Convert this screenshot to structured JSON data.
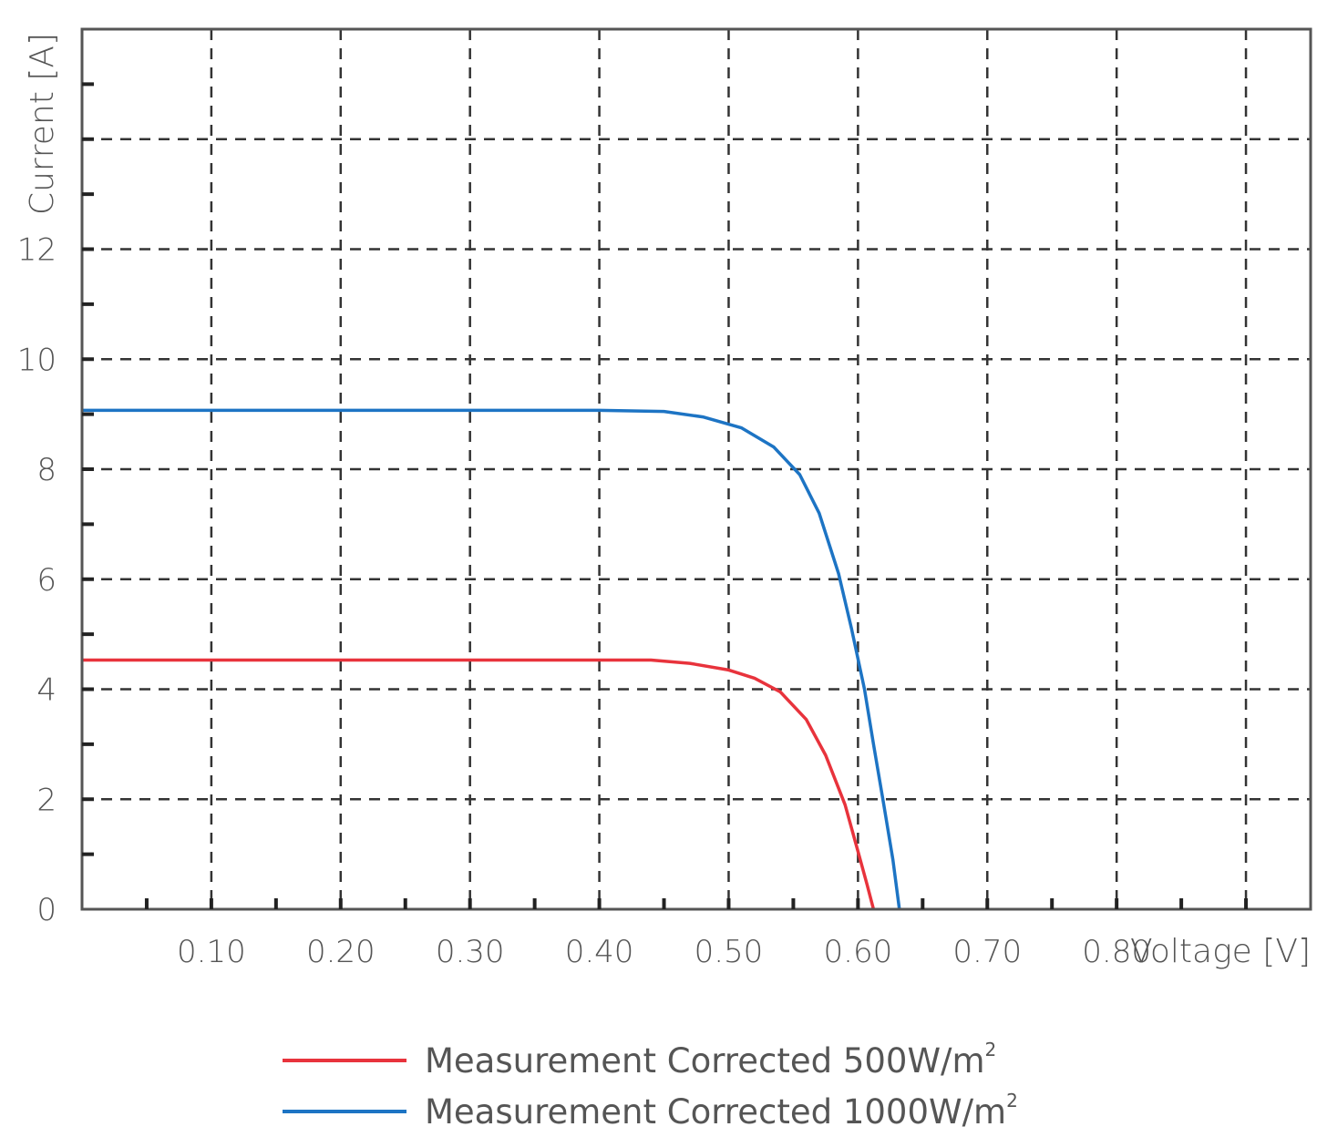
{
  "chart_data": {
    "type": "line",
    "xlabel": "Voltage [V]",
    "ylabel": "Current [A]",
    "xlim": [
      0,
      0.95
    ],
    "ylim": [
      0,
      16
    ],
    "x_ticks": [
      "0.10",
      "0.20",
      "0.30",
      "0.40",
      "0.50",
      "0.60",
      "0.70",
      "0.80"
    ],
    "x_tick_values": [
      0.1,
      0.2,
      0.3,
      0.4,
      0.5,
      0.6,
      0.7,
      0.8
    ],
    "y_ticks": [
      "0",
      "2",
      "4",
      "6",
      "8",
      "10",
      "12"
    ],
    "y_tick_values": [
      0,
      2,
      4,
      6,
      8,
      10,
      12
    ],
    "grid": true,
    "legend_position": "bottom-center",
    "series": [
      {
        "name_prefix": "Measurement Corrected 500W/m",
        "name_suffix": "2",
        "color": "#e8333c",
        "points": [
          [
            0,
            4.53
          ],
          [
            0.1,
            4.53
          ],
          [
            0.2,
            4.53
          ],
          [
            0.3,
            4.53
          ],
          [
            0.4,
            4.53
          ],
          [
            0.44,
            4.53
          ],
          [
            0.47,
            4.47
          ],
          [
            0.5,
            4.35
          ],
          [
            0.52,
            4.2
          ],
          [
            0.54,
            3.95
          ],
          [
            0.56,
            3.45
          ],
          [
            0.575,
            2.8
          ],
          [
            0.59,
            1.9
          ],
          [
            0.6,
            1.05
          ],
          [
            0.607,
            0.45
          ],
          [
            0.612,
            0
          ]
        ]
      },
      {
        "name_prefix": "Measurement Corrected 1000W/m",
        "name_suffix": "2",
        "color": "#1d74c4",
        "points": [
          [
            0,
            9.07
          ],
          [
            0.1,
            9.07
          ],
          [
            0.2,
            9.07
          ],
          [
            0.3,
            9.07
          ],
          [
            0.4,
            9.07
          ],
          [
            0.45,
            9.05
          ],
          [
            0.48,
            8.95
          ],
          [
            0.51,
            8.75
          ],
          [
            0.535,
            8.4
          ],
          [
            0.555,
            7.9
          ],
          [
            0.57,
            7.2
          ],
          [
            0.585,
            6.1
          ],
          [
            0.595,
            5.1
          ],
          [
            0.605,
            4.0
          ],
          [
            0.612,
            3.0
          ],
          [
            0.62,
            1.9
          ],
          [
            0.627,
            0.9
          ],
          [
            0.632,
            0
          ]
        ]
      }
    ]
  }
}
